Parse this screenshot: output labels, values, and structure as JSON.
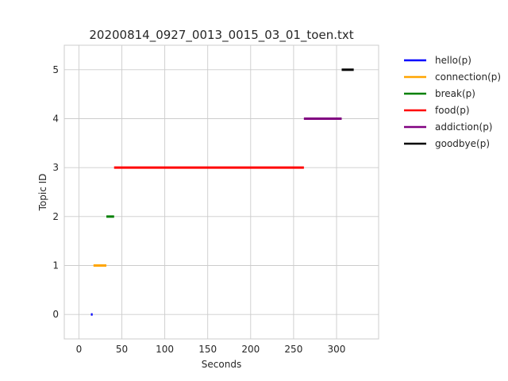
{
  "chart_data": {
    "type": "line",
    "title": "20200814_0927_0013_0015_03_01_toen.txt",
    "xlabel": "Seconds",
    "ylabel": "Topic ID",
    "xlim": [
      -17,
      349
    ],
    "ylim": [
      -0.5,
      5.5
    ],
    "xticks": [
      0,
      50,
      100,
      150,
      200,
      250,
      300
    ],
    "yticks": [
      0,
      1,
      2,
      3,
      4,
      5
    ],
    "grid": true,
    "legend_position": "outside-top-right",
    "series": [
      {
        "name": "hello(p)",
        "color": "#0000ff",
        "topic": 0,
        "x": [
          14,
          16
        ]
      },
      {
        "name": "connection(p)",
        "color": "#ffa500",
        "topic": 1,
        "x": [
          17,
          32
        ]
      },
      {
        "name": "break(p)",
        "color": "#008000",
        "topic": 2,
        "x": [
          32,
          41
        ]
      },
      {
        "name": "food(p)",
        "color": "#ff0000",
        "topic": 3,
        "x": [
          41,
          262
        ]
      },
      {
        "name": "addiction(p)",
        "color": "#800080",
        "topic": 4,
        "x": [
          262,
          306
        ]
      },
      {
        "name": "goodbye(p)",
        "color": "#000000",
        "topic": 5,
        "x": [
          306,
          320
        ]
      }
    ]
  }
}
